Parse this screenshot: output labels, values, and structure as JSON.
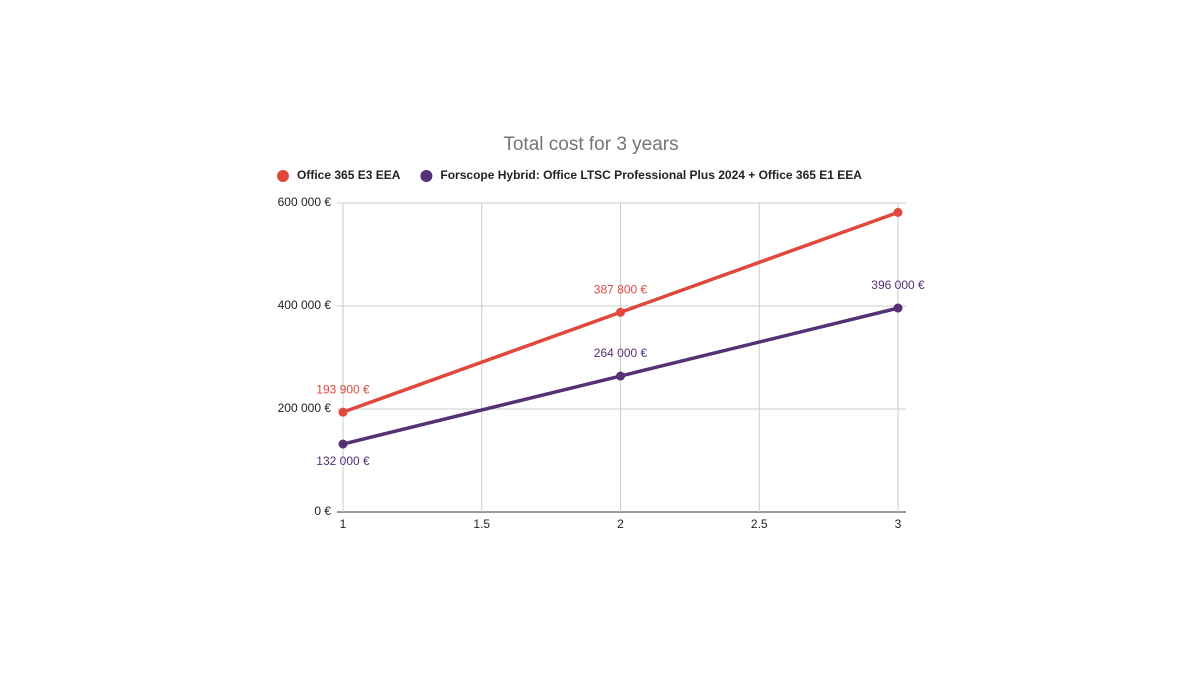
{
  "chart_data": {
    "type": "line",
    "title": "Total cost for 3 years",
    "x": [
      1,
      2,
      3
    ],
    "series": [
      {
        "name": "Office 365 E3 EEA",
        "color": "#e0483e",
        "values": [
          193900,
          387800,
          581700
        ],
        "value_labels": [
          "193 900 €",
          "387 800 €",
          null
        ]
      },
      {
        "name": "Forscope Hybrid: Office LTSC Professional Plus 2024 + Office 365 E1 EEA",
        "color": "#553175",
        "values": [
          132000,
          264000,
          396000
        ],
        "value_labels": [
          "132 000 €",
          "264 000 €",
          "396 000 €"
        ]
      }
    ],
    "xlim": [
      1,
      3
    ],
    "xticks": [
      1,
      1.5,
      2,
      2.5,
      3
    ],
    "ylim": [
      0,
      600000
    ],
    "yticks": [
      {
        "value": 0,
        "label": "0 €"
      },
      {
        "value": 200000,
        "label": "200 000 €"
      },
      {
        "value": 400000,
        "label": "400 000 €"
      },
      {
        "value": 600000,
        "label": "600 000 €"
      }
    ],
    "grid": true,
    "legend": "top"
  }
}
